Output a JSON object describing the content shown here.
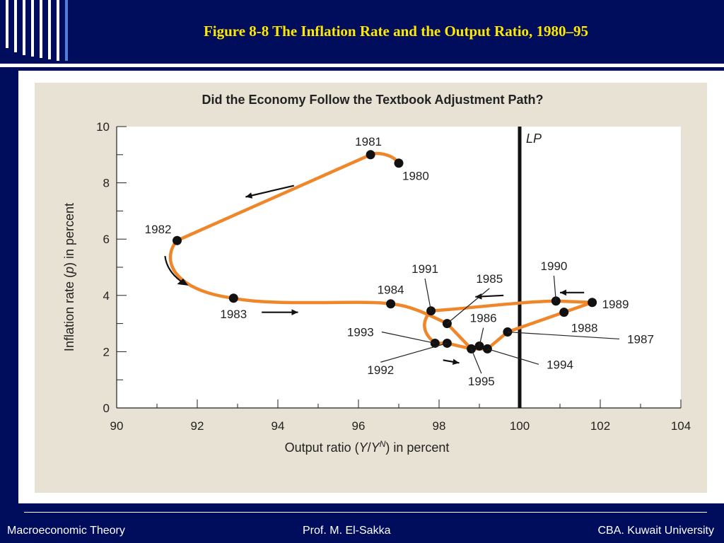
{
  "slide": {
    "title": "Figure 8-8  The Inflation Rate and the Output Ratio, 1980–95",
    "footer_left": "Macroeconomic Theory",
    "footer_center": "Prof. M. El-Sakka",
    "footer_right": "CBA. Kuwait University"
  },
  "colors": {
    "background": "#000c5c",
    "title": "#ffe800",
    "figure_bg": "#e7e2d3",
    "path": "#f0862a",
    "points": "#111111"
  },
  "chart_data": {
    "type": "scatter",
    "title": "Did the Economy Follow the Textbook Adjustment Path?",
    "xlabel_parts": [
      "Output ratio (",
      "Y",
      "/",
      "Y",
      "N",
      ") in percent"
    ],
    "ylabel_parts": [
      "Inflation rate (",
      "p",
      ") in percent"
    ],
    "xlim": [
      90,
      104
    ],
    "ylim": [
      0,
      10
    ],
    "x_ticks": [
      90,
      92,
      94,
      96,
      98,
      100,
      102,
      104
    ],
    "y_ticks": [
      0,
      2,
      4,
      6,
      8,
      10
    ],
    "vertical_line": {
      "x": 100,
      "label": "LP"
    },
    "points": [
      {
        "label": "1980",
        "x": 97.0,
        "y": 8.7
      },
      {
        "label": "1981",
        "x": 96.3,
        "y": 9.0
      },
      {
        "label": "1982",
        "x": 91.5,
        "y": 5.95
      },
      {
        "label": "1983",
        "x": 92.9,
        "y": 3.9
      },
      {
        "label": "1984",
        "x": 96.8,
        "y": 3.7
      },
      {
        "label": "1985",
        "x": 98.2,
        "y": 3.0
      },
      {
        "label": "1986",
        "x": 99.0,
        "y": 2.2
      },
      {
        "label": "1987",
        "x": 99.7,
        "y": 2.7
      },
      {
        "label": "1988",
        "x": 101.1,
        "y": 3.4
      },
      {
        "label": "1989",
        "x": 101.8,
        "y": 3.75
      },
      {
        "label": "1990",
        "x": 100.9,
        "y": 3.8
      },
      {
        "label": "1991",
        "x": 97.8,
        "y": 3.45
      },
      {
        "label": "1992",
        "x": 98.2,
        "y": 2.3
      },
      {
        "label": "1993",
        "x": 97.9,
        "y": 2.3
      },
      {
        "label": "1994",
        "x": 99.2,
        "y": 2.1
      },
      {
        "label": "1995",
        "x": 98.8,
        "y": 2.1
      }
    ],
    "grid": false,
    "legend": "none"
  }
}
